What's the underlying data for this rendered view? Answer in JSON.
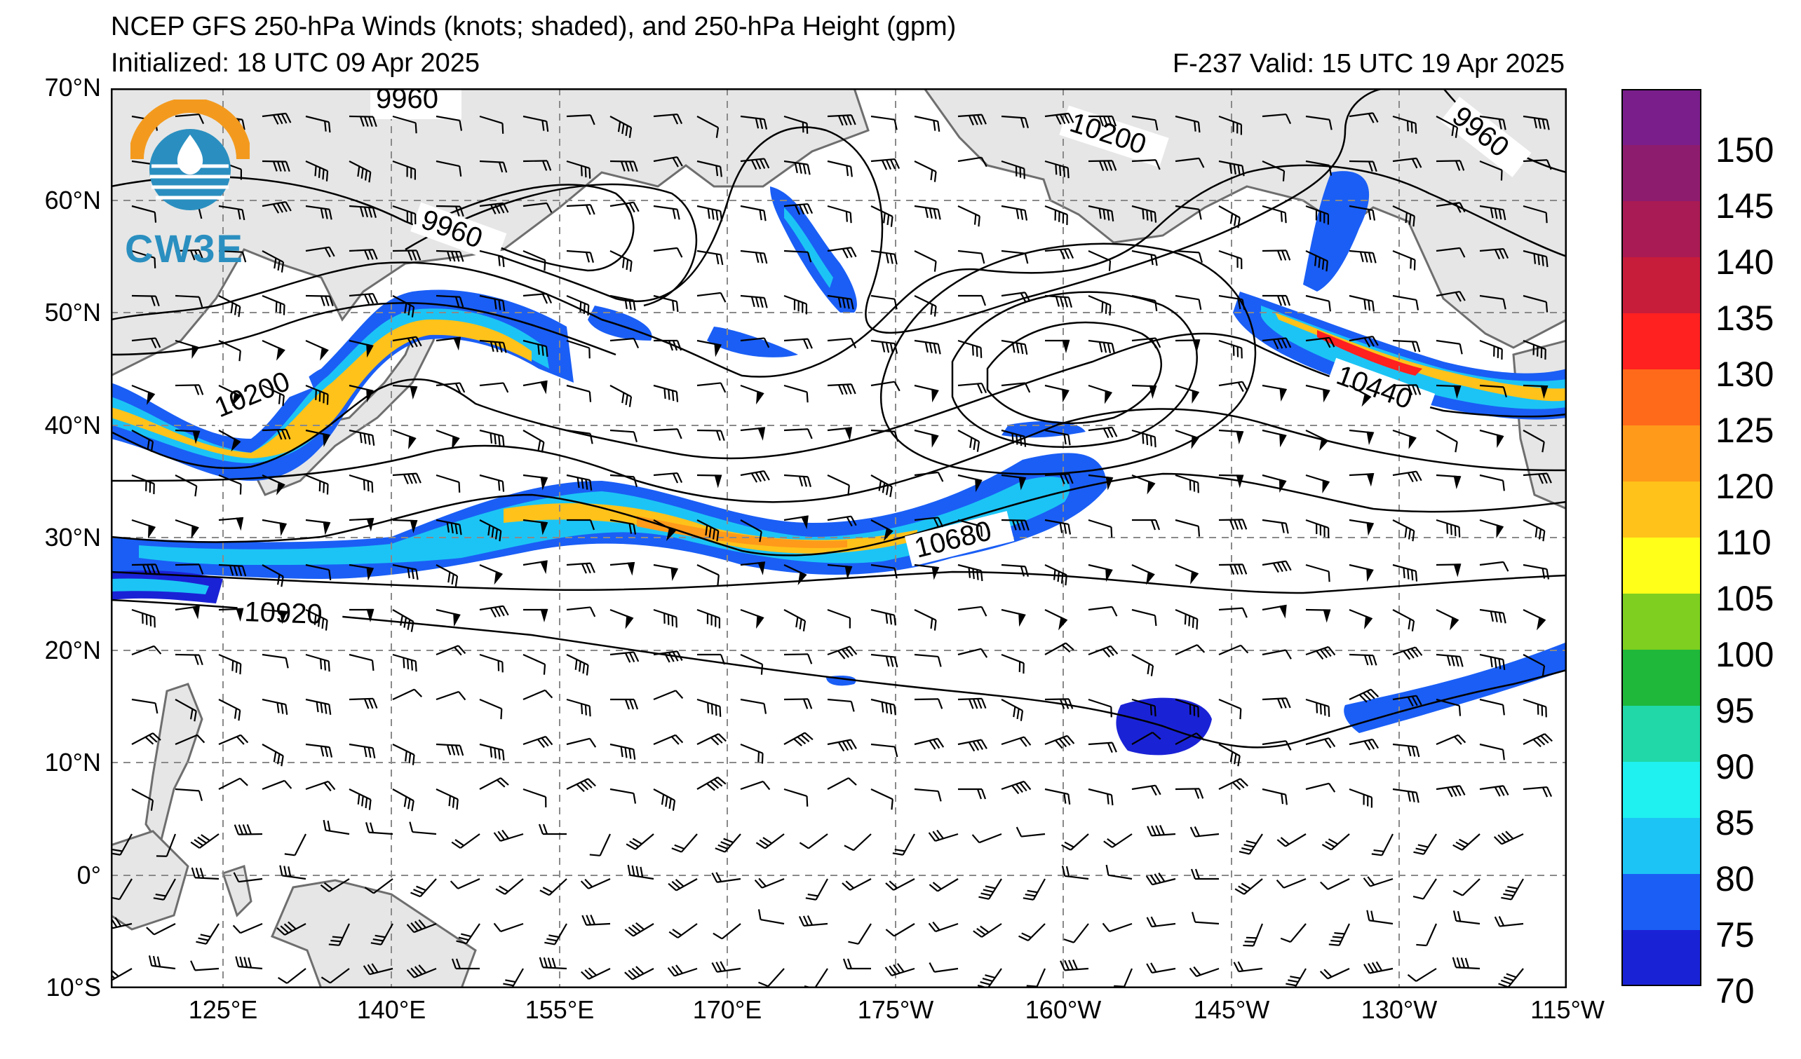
{
  "title": {
    "line1": "NCEP GFS 250-hPa Winds (knots; shaded), and 250-hPa Height (gpm)",
    "line2": "Initialized: 18 UTC 09 Apr 2025",
    "valid": "F-237  Valid: 15 UTC 19 Apr 2025"
  },
  "logo": {
    "text": "CW3E",
    "icon": "cw3e-logo-icon"
  },
  "axes": {
    "lat_labels": [
      "70°N",
      "60°N",
      "50°N",
      "40°N",
      "30°N",
      "20°N",
      "10°N",
      "0°",
      "10°S"
    ],
    "lon_labels": [
      "125°E",
      "140°E",
      "155°E",
      "170°E",
      "175°W",
      "160°W",
      "145°W",
      "130°W",
      "115°W"
    ],
    "lat_range": [
      -10,
      70
    ],
    "lon_range": [
      115,
      245
    ],
    "grid": true
  },
  "contour_labels": [
    "9960",
    "9960",
    "9960",
    "10200",
    "10200",
    "10440",
    "10680",
    "10920"
  ],
  "colorbar": {
    "labels": [
      "150",
      "145",
      "140",
      "135",
      "130",
      "125",
      "120",
      "110",
      "105",
      "100",
      "95",
      "90",
      "85",
      "80",
      "75",
      "70"
    ],
    "colors": [
      "#7a1e8c",
      "#8e1c6e",
      "#a91b54",
      "#c81c3b",
      "#ff2020",
      "#ff6a1a",
      "#ff9a1a",
      "#ffc21a",
      "#ffff1a",
      "#7ecf1f",
      "#1fb83a",
      "#20d8a8",
      "#1ff0f0",
      "#1cc4f5",
      "#1a5ef5",
      "#1a22d6"
    ]
  },
  "colors": {
    "land": "#e6e6e6",
    "coast": "#6e6e6e",
    "ocean": "#ffffff"
  }
}
